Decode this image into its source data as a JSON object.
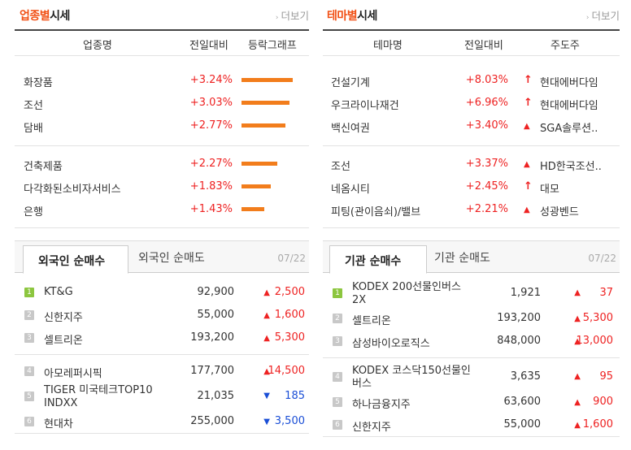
{
  "sector": {
    "title_a": "업종별",
    "title_b": "시세",
    "more": "더보기",
    "headers": [
      "업종명",
      "전일대비",
      "등락그래프"
    ],
    "rows": [
      {
        "name": "화장품",
        "change": "+3.24%",
        "bar": 3.24
      },
      {
        "name": "조선",
        "change": "+3.03%",
        "bar": 3.03
      },
      {
        "name": "담배",
        "change": "+2.77%",
        "bar": 2.77
      },
      {
        "name": "건축제품",
        "change": "+2.27%",
        "bar": 2.27
      },
      {
        "name": "다각화된소비자서비스",
        "change": "+1.83%",
        "bar": 1.83
      },
      {
        "name": "은행",
        "change": "+1.43%",
        "bar": 1.43
      }
    ]
  },
  "theme": {
    "title_a": "테마별",
    "title_b": "시세",
    "more": "더보기",
    "headers": [
      "테마명",
      "전일대비",
      "주도주"
    ],
    "rows": [
      {
        "name": "건설기계",
        "change": "+8.03%",
        "lead": "현대에버다임",
        "icon": "up-arrow-icon"
      },
      {
        "name": "우크라이나재건",
        "change": "+6.96%",
        "lead": "현대에버다임",
        "icon": "up-arrow-icon"
      },
      {
        "name": "백신여권",
        "change": "+3.40%",
        "lead": "SGA솔루션..",
        "icon": "triangle-up-icon"
      },
      {
        "name": "조선",
        "change": "+3.37%",
        "lead": "HD한국조선..",
        "icon": "triangle-up-icon"
      },
      {
        "name": "네옴시티",
        "change": "+2.45%",
        "lead": "대모",
        "icon": "up-arrow-icon"
      },
      {
        "name": "피팅(관이음쇠)/밸브",
        "change": "+2.21%",
        "lead": "성광벤드",
        "icon": "triangle-up-icon"
      }
    ]
  },
  "foreign": {
    "tab_active": "외국인 순매수",
    "tab_inactive": "외국인 순매도",
    "date": "07/22",
    "rows": [
      {
        "rank": "1",
        "name": "KT&G",
        "price": "92,900",
        "dir": "up",
        "amount": "2,500"
      },
      {
        "rank": "2",
        "name": "신한지주",
        "price": "55,000",
        "dir": "up",
        "amount": "1,600"
      },
      {
        "rank": "3",
        "name": "셀트리온",
        "price": "193,200",
        "dir": "up",
        "amount": "5,300"
      },
      {
        "rank": "4",
        "name": "아모레퍼시픽",
        "price": "177,700",
        "dir": "up",
        "amount": "14,500"
      },
      {
        "rank": "5",
        "name": "TIGER 미국테크TOP10 INDXX",
        "price": "21,035",
        "dir": "down",
        "amount": "185"
      },
      {
        "rank": "6",
        "name": "현대차",
        "price": "255,000",
        "dir": "down",
        "amount": "3,500"
      }
    ]
  },
  "inst": {
    "tab_active": "기관 순매수",
    "tab_inactive": "기관 순매도",
    "date": "07/22",
    "rows": [
      {
        "rank": "1",
        "name": "KODEX 200선물인버스2X",
        "price": "1,921",
        "dir": "up",
        "amount": "37"
      },
      {
        "rank": "2",
        "name": "셀트리온",
        "price": "193,200",
        "dir": "up",
        "amount": "5,300"
      },
      {
        "rank": "3",
        "name": "삼성바이오로직스",
        "price": "848,000",
        "dir": "up",
        "amount": "13,000"
      },
      {
        "rank": "4",
        "name": "KODEX 코스닥150선물인버스",
        "price": "3,635",
        "dir": "up",
        "amount": "95"
      },
      {
        "rank": "5",
        "name": "하나금융지주",
        "price": "63,600",
        "dir": "up",
        "amount": "900"
      },
      {
        "rank": "6",
        "name": "신한지주",
        "price": "55,000",
        "dir": "up",
        "amount": "1,600"
      }
    ]
  },
  "colors": {
    "accent": "#f14f14",
    "up": "#ee2222",
    "down": "#1a4ed6",
    "bar": "#f27d1c"
  }
}
